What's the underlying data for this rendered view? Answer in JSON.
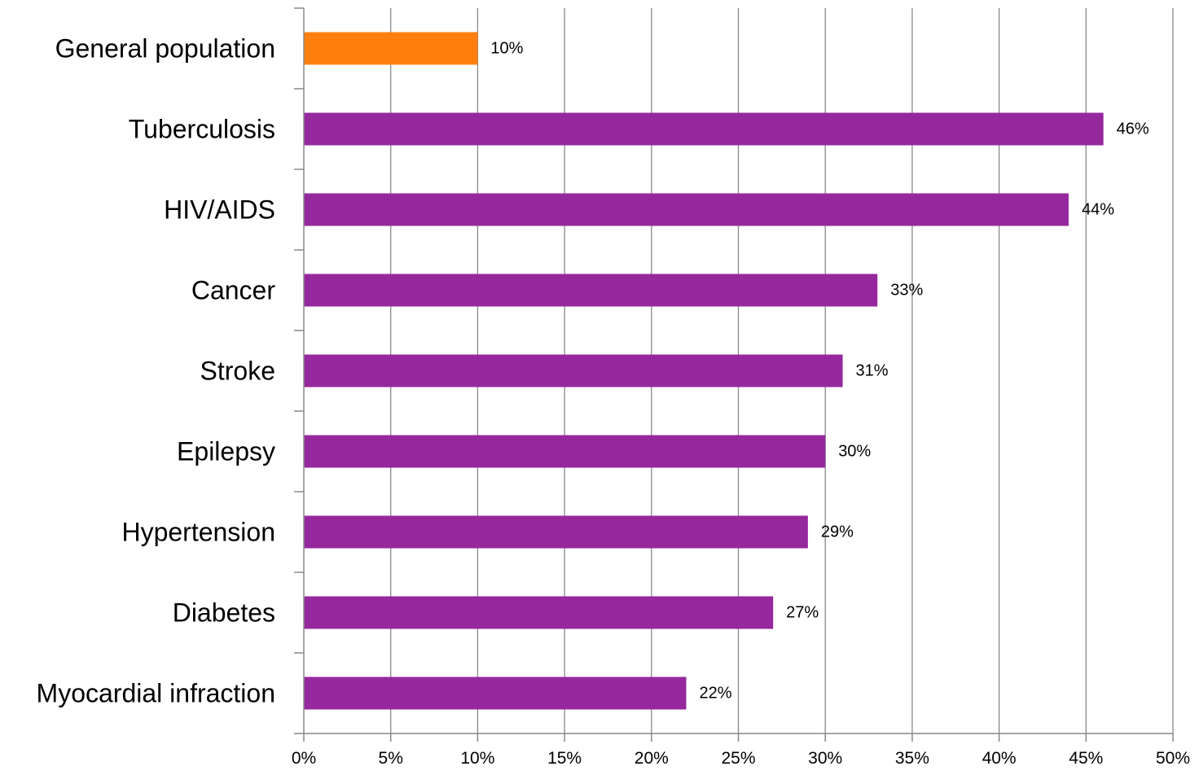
{
  "chart_data": {
    "type": "bar",
    "orientation": "horizontal",
    "title": "",
    "xlabel": "",
    "ylabel": "",
    "categories": [
      "General population",
      "Tuberculosis",
      "HIV/AIDS",
      "Cancer",
      "Stroke",
      "Epilepsy",
      "Hypertension",
      "Diabetes",
      "Myocardial infraction"
    ],
    "values": [
      10,
      46,
      44,
      33,
      31,
      30,
      29,
      27,
      22
    ],
    "data_labels": [
      "10%",
      "46%",
      "44%",
      "33%",
      "31%",
      "30%",
      "29%",
      "27%",
      "22%"
    ],
    "xlim": [
      0,
      50
    ],
    "x_ticks": [
      0,
      5,
      10,
      15,
      20,
      25,
      30,
      35,
      40,
      45,
      50
    ],
    "x_tick_labels": [
      "0%",
      "5%",
      "10%",
      "15%",
      "20%",
      "25%",
      "30%",
      "35%",
      "40%",
      "45%",
      "50%"
    ],
    "grid": "vertical",
    "legend": "none",
    "colors": {
      "highlight": "#FF7F0E",
      "default": "#96289E",
      "grid": "#888888",
      "axis": "#888888"
    },
    "highlighted_categories": [
      "General population"
    ]
  }
}
